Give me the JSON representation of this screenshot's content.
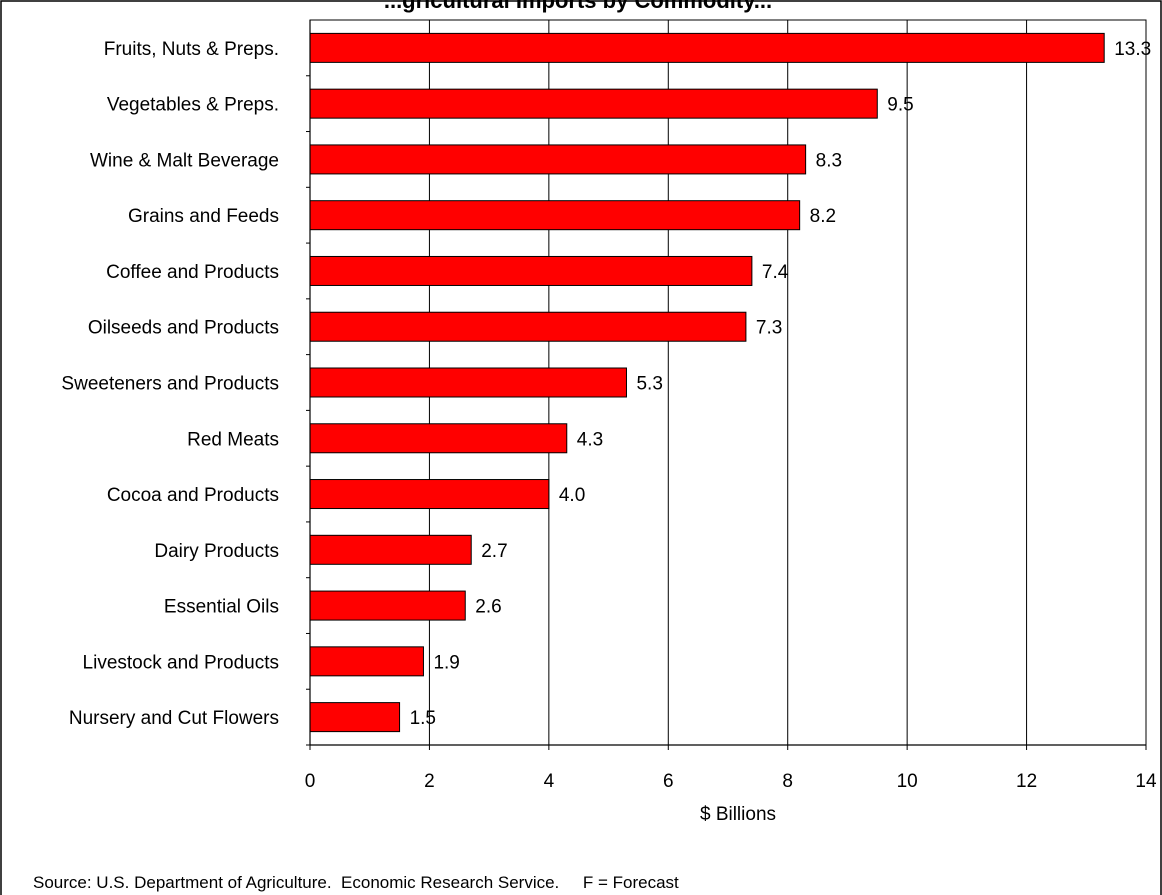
{
  "chart_data": {
    "type": "bar",
    "orientation": "horizontal",
    "title": "...gricultural Imports by Commodity...",
    "categories": [
      "Fruits, Nuts & Preps.",
      "Vegetables & Preps.",
      "Wine & Malt Beverage",
      "Grains and Feeds",
      "Coffee and Products",
      "Oilseeds and Products",
      "Sweeteners and Products",
      "Red Meats",
      "Cocoa and Products",
      "Dairy Products",
      "Essential Oils",
      "Livestock and Products",
      "Nursery and Cut Flowers"
    ],
    "values": [
      13.3,
      9.5,
      8.3,
      8.2,
      7.4,
      7.3,
      5.3,
      4.3,
      4.0,
      2.7,
      2.6,
      1.9,
      1.5
    ],
    "value_labels": [
      "13.3",
      "9.5",
      "8.3",
      "8.2",
      "7.4",
      "7.3",
      "5.3",
      "4.3",
      "4.0",
      "2.7",
      "2.6",
      "1.9",
      "1.5"
    ],
    "xlabel": "$ Billions",
    "ylabel": "",
    "xlim": [
      0,
      14
    ],
    "x_ticks": [
      0,
      2,
      4,
      6,
      8,
      10,
      12,
      14
    ],
    "grid": "vertical",
    "legend": "none",
    "bar_color": "#ff0000",
    "bar_edge_color": "#000000",
    "source_note": "Source: U.S. Department of Agriculture.  Economic Research Service.     F = Forecast"
  }
}
